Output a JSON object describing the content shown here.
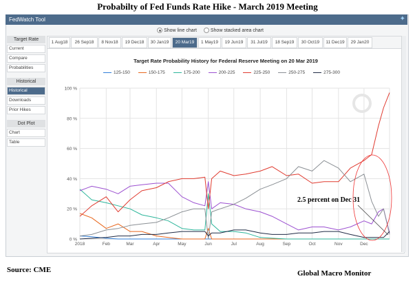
{
  "page_title": "Probabilty of Fed Funds Rate Hike -  March 2019 Meeting",
  "header": {
    "title": "FedWatch Tool",
    "twitter_icon": "twitter-bird-icon"
  },
  "radio": {
    "line": "Show line chart",
    "area": "Show stacked area chart",
    "selected": "line"
  },
  "sidebar": {
    "sections": [
      {
        "label": "Target Rate",
        "items": [
          "Current",
          "Compare",
          "Probabilities"
        ]
      },
      {
        "label": "Historical",
        "items": [
          "Historical",
          "Downloads",
          "Prior Hikes"
        ]
      },
      {
        "label": "Dot Plot",
        "items": [
          "Chart",
          "Table"
        ]
      }
    ],
    "active": "Historical"
  },
  "tabs": [
    "1 Aug18",
    "26 Sep18",
    "8 Nov18",
    "19 Dec18",
    "30 Jan19",
    "20 Mar19",
    "1 May19",
    "19 Jun19",
    "31 Jul19",
    "18 Sep19",
    "30 Oct19",
    "11 Dec19",
    "29 Jan20"
  ],
  "active_tab": "20 Mar19",
  "footer": {
    "source": "Source: CME",
    "brand": "Global Macro Monitor"
  },
  "annotation": "2.5 percent on Dec 31",
  "chart_data": {
    "type": "line",
    "title": "Target Rate Probability History for Federal Reserve Meeting on 20 Mar 2019",
    "legend_position": "top",
    "grid": true,
    "ylim": [
      0,
      100
    ],
    "y_ticks": [
      "0 %",
      "20 %",
      "40 %",
      "60 %",
      "80 %",
      "100 %"
    ],
    "x_ticks": [
      {
        "label": "2018",
        "date": "2018-01-01"
      },
      {
        "label": "Feb",
        "date": "2018-02-01"
      },
      {
        "label": "Mar",
        "date": "2018-03-01"
      },
      {
        "label": "Apr",
        "date": "2018-04-01"
      },
      {
        "label": "May",
        "date": "2018-05-01"
      },
      {
        "label": "Jun",
        "date": "2018-06-01"
      },
      {
        "label": "Jul",
        "date": "2018-07-01"
      },
      {
        "label": "Aug",
        "date": "2018-08-01"
      },
      {
        "label": "Sep",
        "date": "2018-09-01"
      },
      {
        "label": "Oct",
        "date": "2018-10-01"
      },
      {
        "label": "Nov",
        "date": "2018-11-01"
      },
      {
        "label": "Dec",
        "date": "2018-12-01"
      }
    ],
    "xlim": [
      "2018-01-01",
      "2018-12-31"
    ],
    "x": [
      "2018-01-01",
      "2018-01-15",
      "2018-02-01",
      "2018-02-15",
      "2018-03-01",
      "2018-03-15",
      "2018-04-01",
      "2018-04-15",
      "2018-05-01",
      "2018-05-15",
      "2018-05-28",
      "2018-06-01",
      "2018-06-05",
      "2018-06-15",
      "2018-07-01",
      "2018-07-15",
      "2018-08-01",
      "2018-08-15",
      "2018-09-01",
      "2018-09-15",
      "2018-10-01",
      "2018-10-15",
      "2018-11-01",
      "2018-11-15",
      "2018-12-01",
      "2018-12-10",
      "2018-12-18",
      "2018-12-24",
      "2018-12-31"
    ],
    "series": [
      {
        "name": "125-150",
        "color": "#2f7ed8",
        "values": [
          2,
          1.5,
          0.5,
          0,
          0,
          0,
          0,
          0,
          0,
          0,
          0,
          0,
          0,
          0,
          0,
          0,
          0,
          0,
          0,
          0,
          0,
          0,
          0,
          0,
          0,
          0,
          0,
          0,
          0
        ]
      },
      {
        "name": "150-175",
        "color": "#e8661c",
        "values": [
          17,
          14,
          7,
          10,
          5,
          5,
          2,
          1,
          0,
          0,
          0,
          7,
          0,
          0,
          0,
          0,
          0,
          0,
          0,
          0,
          0,
          0,
          0,
          0,
          0,
          0,
          0,
          0,
          0
        ]
      },
      {
        "name": "175-200",
        "color": "#2bb59a",
        "values": [
          33,
          26,
          24,
          22,
          20,
          16,
          14,
          12,
          7,
          6,
          6,
          30,
          10,
          5,
          5,
          4,
          1,
          0.5,
          0,
          0,
          0,
          0,
          0,
          0,
          0,
          0,
          0,
          0,
          0
        ]
      },
      {
        "name": "200-225",
        "color": "#9b4fd0",
        "values": [
          32,
          35,
          33,
          30,
          35,
          36,
          37,
          37,
          28,
          24,
          22,
          38,
          20,
          24,
          23,
          20,
          18,
          15,
          10,
          6,
          8,
          8,
          6,
          8,
          12,
          10,
          18,
          20,
          4
        ]
      },
      {
        "name": "225-250",
        "color": "#e03a2f",
        "values": [
          15,
          22,
          28,
          18,
          26,
          32,
          34,
          38,
          40,
          40,
          41,
          20,
          40,
          45,
          42,
          43,
          45,
          48,
          42,
          43,
          37,
          38,
          38,
          47,
          52,
          56,
          75,
          87,
          97
        ]
      },
      {
        "name": "250-275",
        "color": "#8a8f94",
        "values": [
          2,
          3,
          6,
          7,
          9,
          10,
          11,
          14,
          18,
          20,
          20,
          0,
          18,
          20,
          23,
          27,
          33,
          36,
          40,
          48,
          45,
          52,
          47,
          38,
          43,
          25,
          15,
          20,
          3
        ]
      },
      {
        "name": "275-300",
        "color": "#1f2a44",
        "values": [
          0,
          0.5,
          1,
          2,
          2,
          3,
          3,
          4,
          5,
          5,
          5,
          2,
          4,
          4,
          6,
          6,
          4,
          3,
          3,
          4,
          4,
          5,
          5,
          3,
          1,
          1,
          1,
          1,
          5
        ]
      }
    ]
  }
}
